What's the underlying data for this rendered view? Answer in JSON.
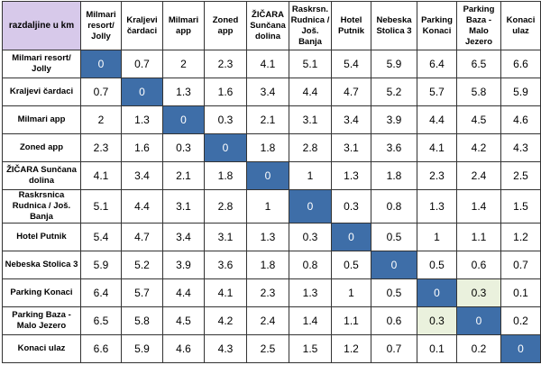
{
  "corner_label": "razdaljine u km",
  "columns": [
    "Milmari resort/ Jolly",
    "Kraljevi čardaci",
    "Milmari app",
    "Zoned app",
    "ŽIČARA Sunčana dolina",
    "Raskrsn. Rudnica / Još. Banja",
    "Hotel Putnik",
    "Nebeska Stolica 3",
    "Parking Konaci",
    "Parking Baza - Malo Jezero",
    "Konaci ulaz"
  ],
  "rows": [
    {
      "label": "Milmari resort/ Jolly",
      "values": [
        "0",
        "0.7",
        "2",
        "2.3",
        "4.1",
        "5.1",
        "5.4",
        "5.9",
        "6.4",
        "6.5",
        "6.6"
      ]
    },
    {
      "label": "Kraljevi čardaci",
      "values": [
        "0.7",
        "0",
        "1.3",
        "1.6",
        "3.4",
        "4.4",
        "4.7",
        "5.2",
        "5.7",
        "5.8",
        "5.9"
      ]
    },
    {
      "label": "Milmari app",
      "values": [
        "2",
        "1.3",
        "0",
        "0.3",
        "2.1",
        "3.1",
        "3.4",
        "3.9",
        "4.4",
        "4.5",
        "4.6"
      ]
    },
    {
      "label": "Zoned app",
      "values": [
        "2.3",
        "1.6",
        "0.3",
        "0",
        "1.8",
        "2.8",
        "3.1",
        "3.6",
        "4.1",
        "4.2",
        "4.3"
      ]
    },
    {
      "label": "ŽIČARA Sunčana dolina",
      "values": [
        "4.1",
        "3.4",
        "2.1",
        "1.8",
        "0",
        "1",
        "1.3",
        "1.8",
        "2.3",
        "2.4",
        "2.5"
      ]
    },
    {
      "label": "Raskrsnica Rudnica / Još. Banja",
      "values": [
        "5.1",
        "4.4",
        "3.1",
        "2.8",
        "1",
        "0",
        "0.3",
        "0.8",
        "1.3",
        "1.4",
        "1.5"
      ]
    },
    {
      "label": "Hotel Putnik",
      "values": [
        "5.4",
        "4.7",
        "3.4",
        "3.1",
        "1.3",
        "0.3",
        "0",
        "0.5",
        "1",
        "1.1",
        "1.2"
      ]
    },
    {
      "label": "Nebeska Stolica 3",
      "values": [
        "5.9",
        "5.2",
        "3.9",
        "3.6",
        "1.8",
        "0.8",
        "0.5",
        "0",
        "0.5",
        "0.6",
        "0.7"
      ]
    },
    {
      "label": "Parking Konaci",
      "values": [
        "6.4",
        "5.7",
        "4.4",
        "4.1",
        "2.3",
        "1.3",
        "1",
        "0.5",
        "0",
        "0.3",
        "0.1"
      ]
    },
    {
      "label": "Parking Baza - Malo Jezero",
      "values": [
        "6.5",
        "5.8",
        "4.5",
        "4.2",
        "2.4",
        "1.4",
        "1.1",
        "0.6",
        "0.3",
        "0",
        "0.2"
      ]
    },
    {
      "label": "Konaci ulaz",
      "values": [
        "6.6",
        "5.9",
        "4.6",
        "4.3",
        "2.5",
        "1.5",
        "1.2",
        "0.7",
        "0.1",
        "0.2",
        "0"
      ]
    }
  ],
  "colors": {
    "corner_bg": "#d7c9ea",
    "diagonal_bg": "#3e6ea8",
    "diagonal_text": "#ffffff",
    "highlight_bg": "#eaf1dd",
    "border": "#333333"
  },
  "highlight_cells": [
    [
      8,
      9
    ],
    [
      9,
      8
    ]
  ]
}
